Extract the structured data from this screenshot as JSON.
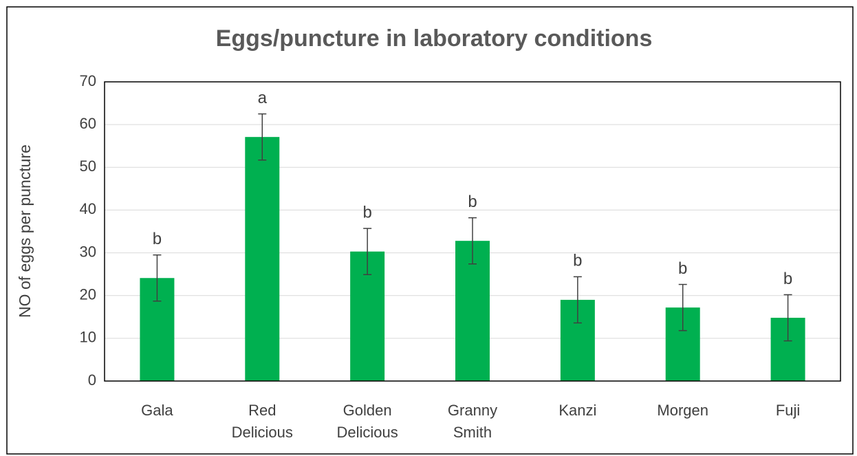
{
  "chart_data": {
    "type": "bar",
    "title": "Eggs/puncture in laboratory conditions",
    "ylabel": "NO of eggs per puncture",
    "categories": [
      "Gala",
      "Red Delicious",
      "Golden Delicious",
      "Granny Smith",
      "Kanzi",
      "Morgen",
      "Fuji"
    ],
    "values": [
      24.1,
      57.1,
      30.3,
      32.8,
      19.0,
      17.2,
      14.8
    ],
    "errors": [
      5.4,
      5.4,
      5.4,
      5.4,
      5.4,
      5.4,
      5.4
    ],
    "annotations": [
      "b",
      "a",
      "b",
      "b",
      "b",
      "b",
      "b"
    ],
    "color": "#00b050",
    "ylim": [
      0,
      70
    ],
    "yticks": [
      0,
      10,
      20,
      30,
      40,
      50,
      60,
      70
    ],
    "grid": true
  }
}
